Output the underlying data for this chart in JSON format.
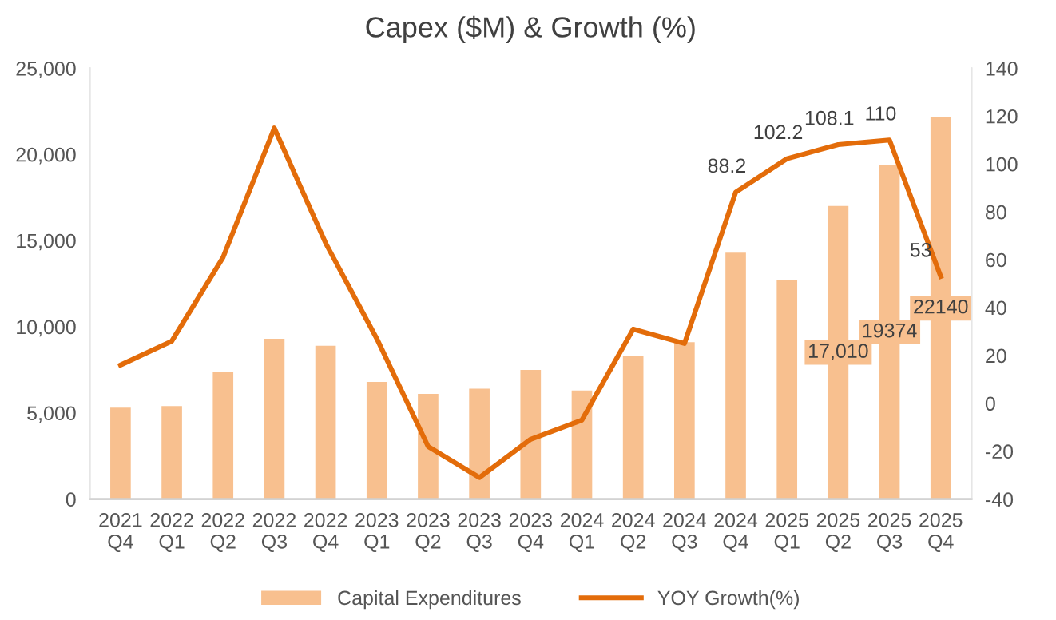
{
  "chart_data": {
    "type": "bar",
    "title": "Capex ($M) & Growth (%)",
    "categories": [
      "2021\nQ4",
      "2022\nQ1",
      "2022\nQ2",
      "2022\nQ3",
      "2022\nQ4",
      "2023\nQ1",
      "2023\nQ2",
      "2023\nQ3",
      "2023\nQ4",
      "2024\nQ1",
      "2024\nQ2",
      "2024\nQ3",
      "2024\nQ4",
      "2025\nQ1",
      "2025\nQ2",
      "2025\nQ3",
      "2025\nQ4"
    ],
    "series": [
      {
        "name": "Capital Expenditures",
        "color": "#f8c08f",
        "values": [
          5300,
          5400,
          7400,
          9300,
          8900,
          6800,
          6100,
          6400,
          7500,
          6300,
          8300,
          9100,
          14300,
          12700,
          17010,
          19374,
          22140
        ],
        "value_labels": [
          null,
          null,
          null,
          null,
          null,
          null,
          null,
          null,
          null,
          null,
          null,
          null,
          null,
          null,
          "17,010",
          "19374",
          "22140"
        ]
      },
      {
        "name": "YOY Growth(%)",
        "type": "line",
        "axis": "y2",
        "color": "#e36c0a",
        "values": [
          16,
          26,
          61,
          115,
          67,
          27,
          -18,
          -31,
          -15,
          -7,
          31,
          25,
          88.2,
          102.2,
          108.1,
          110,
          53
        ],
        "value_labels": [
          null,
          null,
          null,
          null,
          null,
          null,
          null,
          null,
          null,
          null,
          null,
          null,
          "88.2",
          "102.2",
          "108.1",
          "110",
          "53"
        ]
      }
    ],
    "ylim": [
      0,
      25000
    ],
    "yticks": [
      {
        "value": 0,
        "label": "0"
      },
      {
        "value": 5000,
        "label": "5,000"
      },
      {
        "value": 10000,
        "label": "10,000"
      },
      {
        "value": 15000,
        "label": "15,000"
      },
      {
        "value": 20000,
        "label": "20,000"
      },
      {
        "value": 25000,
        "label": "25,000"
      }
    ],
    "y2lim": [
      -40,
      140
    ],
    "y2ticks": [
      -40,
      -20,
      0,
      20,
      40,
      60,
      80,
      100,
      120,
      140
    ],
    "grid": false,
    "legend": "bottom",
    "marker": "none",
    "line_style": "solid"
  }
}
